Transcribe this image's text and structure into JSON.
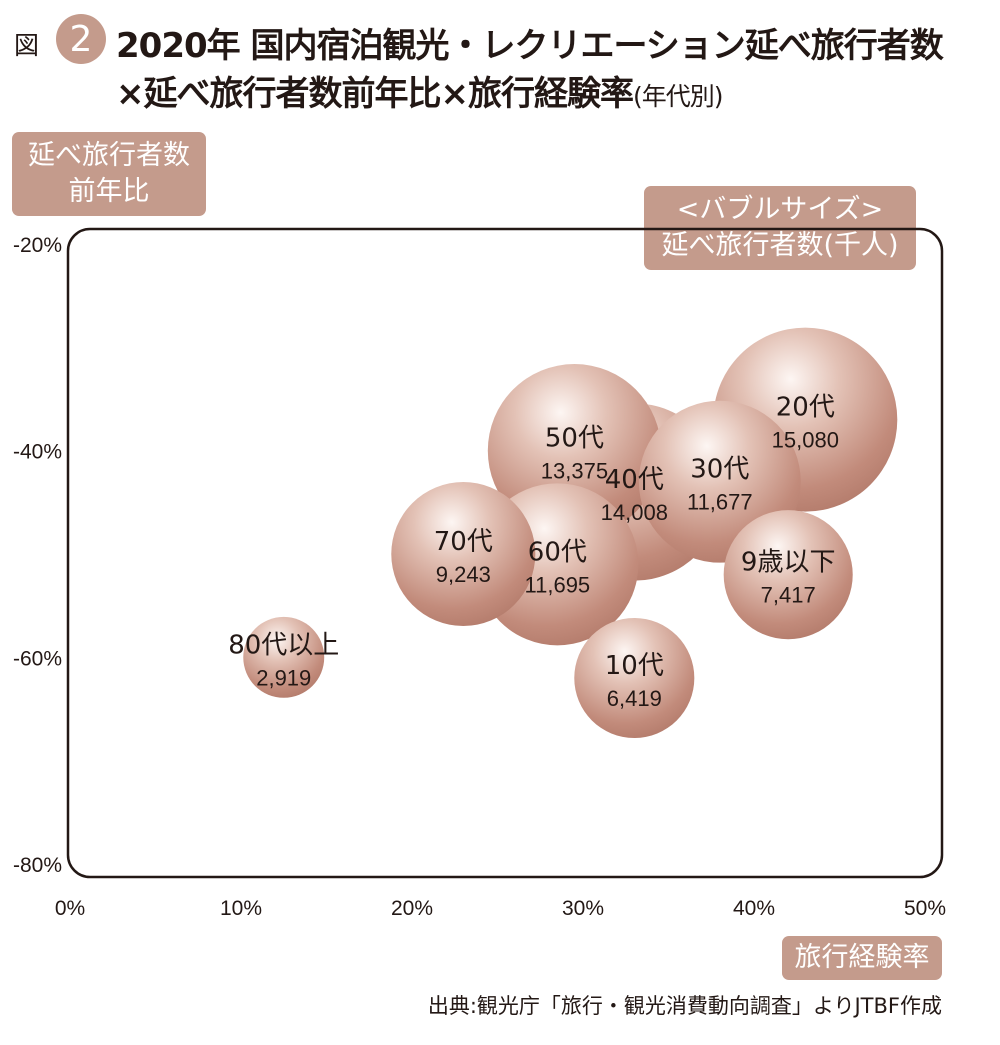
{
  "header": {
    "figure_label": "図",
    "figure_number": "2",
    "title_line1": "2020年 国内宿泊観光・レクリエーション延べ旅行者数",
    "title_line2": "×延べ旅行者数前年比×旅行経験率",
    "title_line2_sub": "(年代別)"
  },
  "tags": {
    "y_axis_line1": "延べ旅行者数",
    "y_axis_line2": "前年比",
    "bubble_line1": "<バブルサイズ>",
    "bubble_line2": "延べ旅行者数(千人)",
    "x_axis": "旅行経験率"
  },
  "source": "出典:観光庁「旅行・観光消費動向調査」よりJTBF作成",
  "colors": {
    "accent": "#c49b8c",
    "bubble": "#c99484",
    "bubble_highlight": "#ffffff",
    "text": "#231815"
  },
  "chart_data": {
    "type": "scatter",
    "variant": "bubble",
    "xlabel": "旅行経験率",
    "ylabel": "延べ旅行者数前年比",
    "size_label": "延べ旅行者数(千人)",
    "xlim": [
      0,
      50
    ],
    "ylim": [
      -80,
      -20
    ],
    "x_ticks": [
      "0%",
      "10%",
      "20%",
      "30%",
      "40%",
      "50%"
    ],
    "y_ticks": [
      "-20%",
      "-40%",
      "-60%",
      "-80%"
    ],
    "grid": false,
    "points": [
      {
        "label": "20代",
        "size_label": "15,080",
        "x": 43,
        "y": -37,
        "size": 15080
      },
      {
        "label": "50代",
        "size_label": "13,375",
        "x": 29.5,
        "y": -40,
        "size": 13375
      },
      {
        "label": "40代",
        "size_label": "14,008",
        "x": 33,
        "y": -44,
        "size": 14008
      },
      {
        "label": "30代",
        "size_label": "11,677",
        "x": 38,
        "y": -43,
        "size": 11677
      },
      {
        "label": "70代",
        "size_label": "9,243",
        "x": 23,
        "y": -50,
        "size": 9243
      },
      {
        "label": "60代",
        "size_label": "11,695",
        "x": 28.5,
        "y": -51,
        "size": 11695
      },
      {
        "label": "9歳以下",
        "size_label": "7,417",
        "x": 42,
        "y": -52,
        "size": 7417
      },
      {
        "label": "10代",
        "size_label": "6,419",
        "x": 33,
        "y": -62,
        "size": 6419
      },
      {
        "label": "80代以上",
        "size_label": "2,919",
        "x": 12.5,
        "y": -60,
        "size": 2919
      }
    ]
  }
}
